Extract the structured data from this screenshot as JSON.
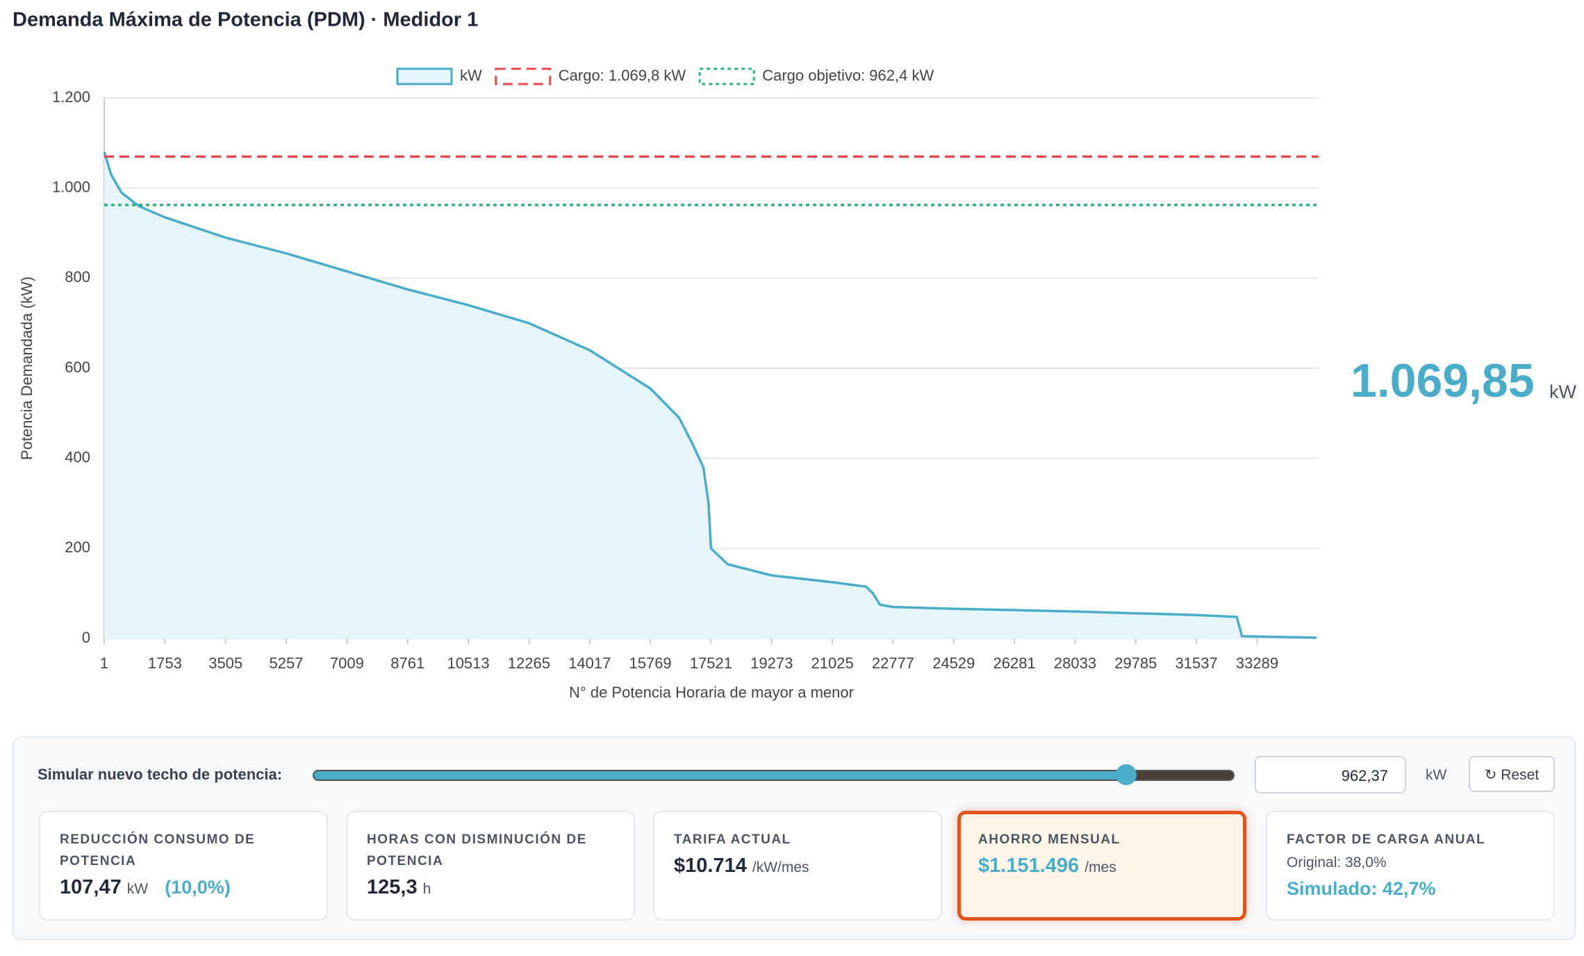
{
  "chart_data": {
    "type": "area",
    "title": "Demanda Máxima de Potencia (PDM) · Medidor 1",
    "x_label": "N° de Potencia Horaria de mayor a menor",
    "y_label": "Potencia Demandada (kW)",
    "series": [
      {
        "name": "kW",
        "color": "#4aacc8",
        "fill": "#e6f5fa",
        "x": [
          1,
          200,
          500,
          1000,
          1753,
          3505,
          5257,
          7009,
          8761,
          10513,
          12265,
          14017,
          15769,
          16600,
          17000,
          17300,
          17450,
          17521,
          18000,
          19273,
          21025,
          22000,
          22200,
          22400,
          22777,
          24529,
          26281,
          28033,
          29785,
          31537,
          32700,
          32850,
          35000
        ],
        "values": [
          1080,
          1030,
          990,
          960,
          935,
          890,
          855,
          815,
          775,
          740,
          700,
          640,
          555,
          490,
          430,
          380,
          300,
          200,
          165,
          140,
          125,
          115,
          100,
          75,
          70,
          66,
          63,
          60,
          56,
          52,
          48,
          5,
          2
        ]
      }
    ],
    "reference_lines": [
      {
        "name": "Cargo: 1.069,8 kW",
        "value": 1069.8,
        "color": "#e5484d",
        "style": "dashed"
      },
      {
        "name": "Cargo objetivo: 962,4 kW",
        "value": 962.4,
        "color": "#2bb27a",
        "style": "dotted"
      }
    ],
    "xlim": [
      1,
      35064
    ],
    "xticks": [
      1,
      1753,
      3505,
      5257,
      7009,
      8761,
      10513,
      12265,
      14017,
      15769,
      17521,
      19273,
      21025,
      22777,
      24529,
      26281,
      28033,
      29785,
      31537,
      33289
    ],
    "ylim": [
      0,
      1200
    ],
    "yticks": [
      0,
      200,
      400,
      600,
      800,
      {
        "value": 1000,
        "label": "1.000"
      },
      {
        "value": 1200,
        "label": "1.200"
      }
    ],
    "grid": true
  },
  "current_value": {
    "value": "1.069,85",
    "unit": "kW"
  },
  "simulator": {
    "label": "Simular nuevo techo de potencia:",
    "input_value": "962,37",
    "unit": "kW",
    "reset": "↻ Reset"
  },
  "cards": [
    {
      "label": "REDUCCIÓN CONSUMO DE POTENCIA",
      "value": "107,47",
      "unit": "kW",
      "extra": "(10,0%)"
    },
    {
      "label": "HORAS CON DISMINUCIÓN DE POTENCIA",
      "value": "125,3",
      "unit": "h"
    },
    {
      "label": "TARIFA ACTUAL",
      "value": "$10.714",
      "unit": "/kW/mes"
    },
    {
      "label": "AHORRO MENSUAL",
      "value": "$1.151.496",
      "unit": "/mes"
    },
    {
      "label": "FACTOR DE CARGA ANUAL",
      "original": "Original: 38,0%",
      "simulated": "Simulado: 42,7%"
    }
  ]
}
